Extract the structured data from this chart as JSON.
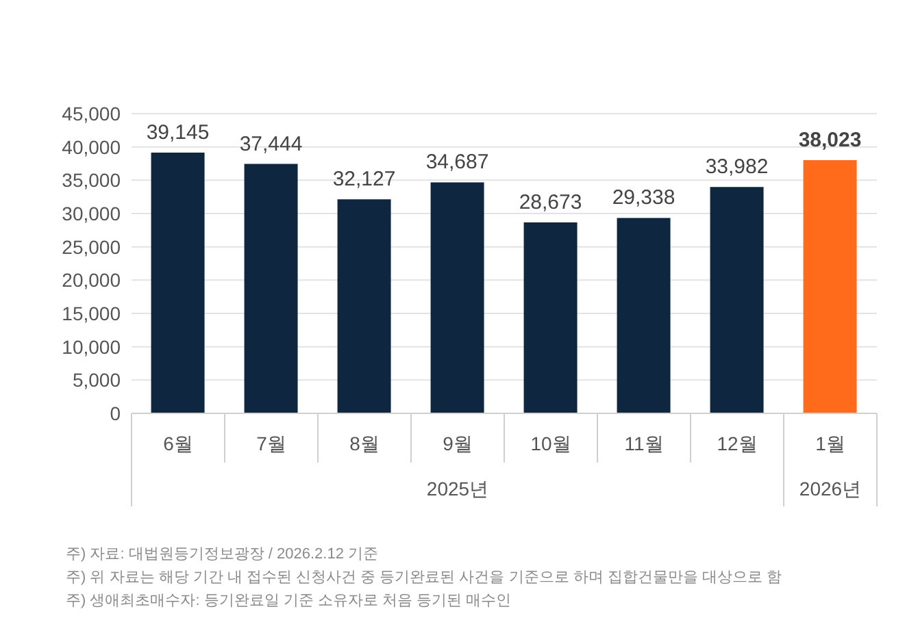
{
  "chart_data": {
    "type": "bar",
    "categories": [
      "6월",
      "7월",
      "8월",
      "9월",
      "10월",
      "11월",
      "12월",
      "1월"
    ],
    "values": [
      39145,
      37444,
      32127,
      34687,
      28673,
      29338,
      33982,
      38023
    ],
    "value_labels": [
      "39,145",
      "37,444",
      "32,127",
      "34,687",
      "28,673",
      "29,338",
      "33,982",
      "38,023"
    ],
    "colors": [
      "#0f2640",
      "#0f2640",
      "#0f2640",
      "#0f2640",
      "#0f2640",
      "#0f2640",
      "#0f2640",
      "#ff6b1a"
    ],
    "ylim": [
      0,
      45000
    ],
    "yticks": [
      {
        "value": 0,
        "label": "0"
      },
      {
        "value": 5000,
        "label": "5,000"
      },
      {
        "value": 10000,
        "label": "10,000"
      },
      {
        "value": 15000,
        "label": "15,000"
      },
      {
        "value": 20000,
        "label": "20,000"
      },
      {
        "value": 25000,
        "label": "25,000"
      },
      {
        "value": 30000,
        "label": "30,000"
      },
      {
        "value": 35000,
        "label": "35,000"
      },
      {
        "value": 40000,
        "label": "40,000"
      },
      {
        "value": 45000,
        "label": "45,000"
      }
    ],
    "grid": "y",
    "annotations": [
      "2025년",
      "2026년",
      "주) 자료: 대법원등기정보광장 / 2026.2.12 기준",
      "주) 위 자료는 해당 기간 내 접수된 신청사건 중 등기완료된 사건을 기준으로 하며 집합건물만을 대상으로 함",
      "주) 생애최초매수자: 등기완료일 기준 소유자로 처음 등기된 매수인"
    ]
  }
}
